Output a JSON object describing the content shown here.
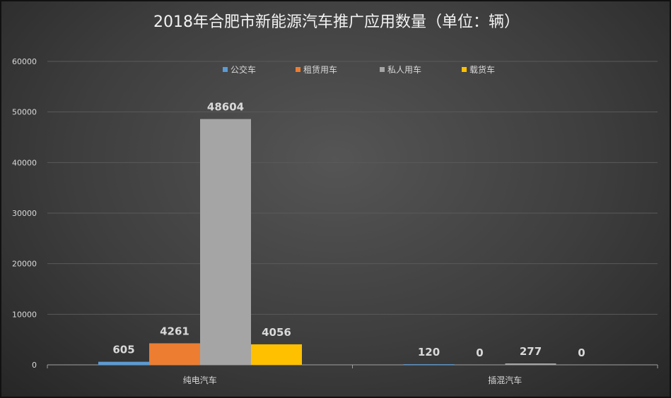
{
  "chart_data": {
    "type": "bar",
    "title": "2018年合肥市新能源汽车推广应用数量（单位：辆）",
    "categories": [
      "纯电汽车",
      "插混汽车"
    ],
    "series": [
      {
        "name": "公交车",
        "color": "#5b9bd5",
        "values": [
          605,
          120
        ]
      },
      {
        "name": "租赁用车",
        "color": "#ed7d31",
        "values": [
          4261,
          0
        ]
      },
      {
        "name": "私人用车",
        "color": "#a5a5a5",
        "values": [
          48604,
          277
        ]
      },
      {
        "name": "载货车",
        "color": "#ffc000",
        "values": [
          4056,
          0
        ]
      }
    ],
    "ylim": [
      0,
      60000
    ],
    "yticks": [
      0,
      10000,
      20000,
      30000,
      40000,
      50000,
      60000
    ],
    "grid": true,
    "legend": "top-center",
    "xlabel": "",
    "ylabel": ""
  }
}
